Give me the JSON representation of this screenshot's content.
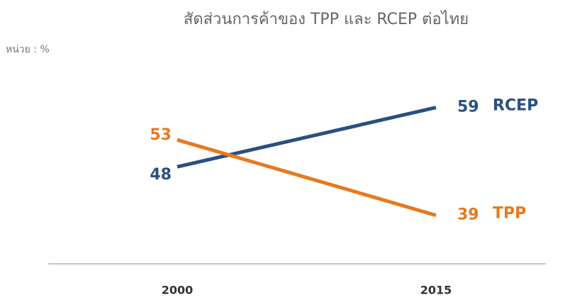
{
  "chart_data": {
    "type": "line",
    "title": "สัดส่วนการค้าของ TPP และ RCEP ต่อไทย",
    "unit_label": "หน่วย : %",
    "categories": [
      "2000",
      "2015"
    ],
    "series": [
      {
        "name": "RCEP",
        "color": "#2b4f7e",
        "values": [
          48,
          59
        ]
      },
      {
        "name": "TPP",
        "color": "#e8791e",
        "values": [
          53,
          39
        ]
      }
    ],
    "ylim": [
      30,
      65
    ]
  }
}
